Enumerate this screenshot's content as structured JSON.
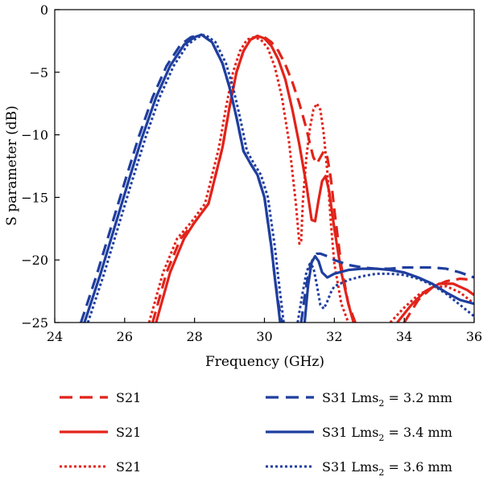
{
  "chart_data": {
    "type": "line",
    "xlabel": "Frequency (GHz)",
    "ylabel": "S parameter (dB)",
    "xlim": [
      24,
      36
    ],
    "ylim": [
      -25,
      0
    ],
    "xticks": [
      24,
      26,
      28,
      30,
      32,
      34,
      36
    ],
    "yticks": [
      0,
      -5,
      -10,
      -15,
      -20,
      -25
    ],
    "grid": false,
    "legend_position": "bottom",
    "series": [
      {
        "name": "S21",
        "color": "#e2231a",
        "dash": "dashed",
        "x": [
          26.8,
          27.2,
          27.6,
          28.0,
          28.4,
          28.8,
          29.0,
          29.2,
          29.4,
          29.6,
          29.8,
          30.0,
          30.2,
          30.4,
          30.6,
          30.8,
          31.0,
          31.2,
          31.3,
          31.4,
          31.5,
          31.6,
          31.7,
          31.8,
          31.9,
          32.0,
          32.2,
          32.4,
          32.6
        ],
        "y": [
          -25,
          -21,
          -18.3,
          -17,
          -15.5,
          -11,
          -7.8,
          -5.0,
          -3.3,
          -2.4,
          -2.1,
          -2.2,
          -2.6,
          -3.3,
          -4.4,
          -5.8,
          -7.5,
          -9.5,
          -10.7,
          -11.8,
          -12.3,
          -11.8,
          -11.3,
          -11.8,
          -13.5,
          -16,
          -20.5,
          -23.5,
          -25
        ]
      },
      {
        "name": "S21",
        "color": "#e2231a",
        "dash": "dashed",
        "x": [
          34.0,
          34.4,
          34.8,
          35.2,
          35.6,
          36.0
        ],
        "y": [
          -25,
          -23.2,
          -22.2,
          -21.7,
          -21.5,
          -21.6
        ]
      },
      {
        "name": "S21",
        "color": "#e2231a",
        "dash": "solid",
        "x": [
          26.9,
          27.3,
          27.7,
          28.0,
          28.4,
          28.8,
          29.0,
          29.2,
          29.4,
          29.6,
          29.8,
          30.0,
          30.2,
          30.4,
          30.6,
          30.8,
          31.0,
          31.2,
          31.35,
          31.45,
          31.55,
          31.65,
          31.75,
          31.85,
          32.0,
          32.2,
          32.4,
          32.55
        ],
        "y": [
          -25,
          -21,
          -18.3,
          -17,
          -15.5,
          -11,
          -7.8,
          -5.0,
          -3.3,
          -2.4,
          -2.1,
          -2.3,
          -2.9,
          -4.0,
          -5.6,
          -8.0,
          -10.8,
          -14.0,
          -16.8,
          -16.9,
          -15.2,
          -13.7,
          -13.3,
          -14.5,
          -17.5,
          -21,
          -23.5,
          -25
        ]
      },
      {
        "name": "S21",
        "color": "#e2231a",
        "dash": "solid",
        "x": [
          33.8,
          34.2,
          34.6,
          35.0,
          35.4,
          35.8,
          36.0
        ],
        "y": [
          -25,
          -23.6,
          -22.5,
          -21.9,
          -21.9,
          -22.4,
          -22.8
        ]
      },
      {
        "name": "S21",
        "color": "#e2231a",
        "dash": "dotted",
        "x": [
          26.7,
          27.1,
          27.5,
          27.9,
          28.3,
          28.7,
          28.9,
          29.1,
          29.3,
          29.5,
          29.7,
          29.9,
          30.1,
          30.3,
          30.5,
          30.7,
          30.9,
          31.0,
          31.05,
          31.1,
          31.2,
          31.3,
          31.4,
          31.5,
          31.6,
          31.7,
          31.8,
          31.9,
          32.0,
          32.2,
          32.4
        ],
        "y": [
          -25,
          -21,
          -18.3,
          -17,
          -15.5,
          -11,
          -7.8,
          -5.0,
          -3.3,
          -2.4,
          -2.2,
          -2.4,
          -3.1,
          -4.6,
          -7.0,
          -10.5,
          -15.5,
          -18.7,
          -18.5,
          -15.3,
          -11.8,
          -9.5,
          -8.0,
          -7.5,
          -8.0,
          -10.0,
          -13.0,
          -17.0,
          -20.3,
          -23.5,
          -25
        ]
      },
      {
        "name": "S21",
        "color": "#e2231a",
        "dash": "dotted",
        "x": [
          33.6,
          34.0,
          34.4,
          34.8,
          35.2,
          35.6,
          36.0
        ],
        "y": [
          -25,
          -23.8,
          -22.8,
          -22.2,
          -22.1,
          -22.6,
          -23.5
        ]
      },
      {
        "name": "S31 Lms2 = 3.2 mm",
        "color": "#1f3e9e",
        "dash": "dashed",
        "x": [
          24.75,
          25.2,
          25.6,
          26.0,
          26.4,
          26.8,
          27.2,
          27.6,
          27.9,
          28.2,
          28.5,
          28.8,
          29.0,
          29.2,
          29.4,
          29.6,
          29.8,
          30.0,
          30.2,
          30.3,
          30.4,
          30.5
        ],
        "y": [
          -25,
          -21.2,
          -17.5,
          -13.8,
          -10.2,
          -7.0,
          -4.5,
          -2.8,
          -2.2,
          -2.0,
          -2.6,
          -4.3,
          -6.2,
          -8.6,
          -11.3,
          -12.3,
          -13.2,
          -15.0,
          -19.0,
          -21.5,
          -23.5,
          -25
        ]
      },
      {
        "name": "S31 Lms2 = 3.2 mm",
        "color": "#1f3e9e",
        "dash": "dashed",
        "x": [
          31.05,
          31.2,
          31.3,
          31.4,
          31.5,
          31.6,
          31.8,
          32.0,
          32.4,
          32.8,
          33.2,
          33.6,
          34.0,
          34.4,
          34.8,
          35.2,
          35.6,
          36.0
        ],
        "y": [
          -25,
          -22.0,
          -20.6,
          -19.8,
          -19.5,
          -19.5,
          -19.7,
          -20.0,
          -20.4,
          -20.6,
          -20.7,
          -20.7,
          -20.6,
          -20.6,
          -20.6,
          -20.7,
          -21.0,
          -21.4
        ]
      },
      {
        "name": "S31 Lms2 = 3.4 mm",
        "color": "#1f3e9e",
        "dash": "solid",
        "x": [
          24.85,
          25.3,
          25.7,
          26.1,
          26.5,
          26.9,
          27.3,
          27.7,
          28.0,
          28.2,
          28.5,
          28.8,
          29.0,
          29.2,
          29.4,
          29.6,
          29.8,
          30.0,
          30.2,
          30.3,
          30.4,
          30.45
        ],
        "y": [
          -25,
          -21.2,
          -17.5,
          -13.8,
          -10.2,
          -7.0,
          -4.5,
          -2.8,
          -2.2,
          -2.0,
          -2.6,
          -4.3,
          -6.2,
          -8.6,
          -11.3,
          -12.3,
          -13.2,
          -15.0,
          -19.0,
          -21.5,
          -23.8,
          -25
        ]
      },
      {
        "name": "S31 Lms2 = 3.4 mm",
        "color": "#1f3e9e",
        "dash": "solid",
        "x": [
          31.15,
          31.25,
          31.35,
          31.45,
          31.55,
          31.65,
          31.8,
          32.0,
          32.4,
          32.8,
          33.2,
          33.6,
          34.0,
          34.4,
          34.8,
          35.2,
          35.6,
          36.0
        ],
        "y": [
          -25,
          -22.0,
          -20.2,
          -19.7,
          -20.1,
          -21.0,
          -21.4,
          -21.1,
          -20.8,
          -20.7,
          -20.7,
          -20.8,
          -21.0,
          -21.4,
          -21.9,
          -22.6,
          -23.2,
          -23.5
        ]
      },
      {
        "name": "S31 Lms2 = 3.6 mm",
        "color": "#1f3e9e",
        "dash": "dotted",
        "x": [
          24.95,
          25.4,
          25.8,
          26.2,
          26.6,
          27.0,
          27.4,
          27.8,
          28.1,
          28.3,
          28.6,
          28.9,
          29.1,
          29.3,
          29.5,
          29.7,
          29.9,
          30.1,
          30.3,
          30.4,
          30.5,
          30.55
        ],
        "y": [
          -25,
          -21.2,
          -17.5,
          -13.8,
          -10.2,
          -7.0,
          -4.5,
          -2.8,
          -2.2,
          -2.0,
          -2.6,
          -4.3,
          -6.2,
          -8.6,
          -11.3,
          -12.3,
          -13.2,
          -15.0,
          -19.0,
          -21.5,
          -23.8,
          -25
        ]
      },
      {
        "name": "S31 Lms2 = 3.6 mm",
        "color": "#1f3e9e",
        "dash": "dotted",
        "x": [
          30.95,
          31.1,
          31.2,
          31.3,
          31.4,
          31.5,
          31.6,
          31.7,
          31.8,
          31.9,
          32.0,
          32.4,
          32.8,
          33.2,
          33.6,
          34.0,
          34.4,
          34.8,
          35.2,
          35.6,
          36.0
        ],
        "y": [
          -25,
          -22.5,
          -21.0,
          -20.3,
          -20.6,
          -22.0,
          -23.6,
          -23.9,
          -23.3,
          -22.6,
          -22.1,
          -21.6,
          -21.3,
          -21.1,
          -21.1,
          -21.2,
          -21.5,
          -22.0,
          -22.7,
          -23.6,
          -24.5
        ]
      }
    ]
  },
  "legend": {
    "items": [
      {
        "label": "S21",
        "color": "#e2231a",
        "dash": "dashed"
      },
      {
        "label": "S31 Lms",
        "sub": "2",
        "suffix": " = 3.2 mm",
        "color": "#1f3e9e",
        "dash": "dashed"
      },
      {
        "label": "S21",
        "color": "#e2231a",
        "dash": "solid"
      },
      {
        "label": "S31 Lms",
        "sub": "2",
        "suffix": " = 3.4 mm",
        "color": "#1f3e9e",
        "dash": "solid"
      },
      {
        "label": "S21",
        "color": "#e2231a",
        "dash": "dotted"
      },
      {
        "label": "S31 Lms",
        "sub": "2",
        "suffix": " = 3.6 mm",
        "color": "#1f3e9e",
        "dash": "dotted"
      }
    ]
  }
}
